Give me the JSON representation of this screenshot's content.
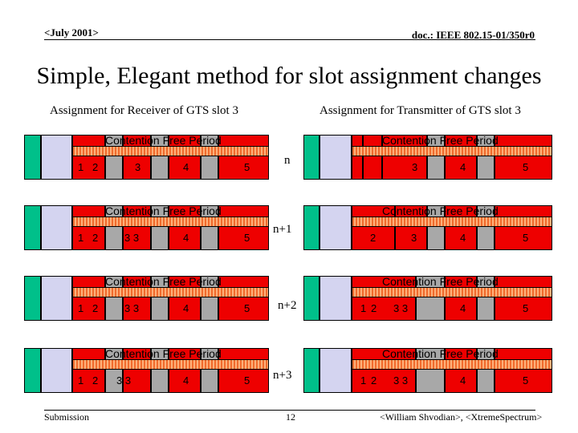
{
  "header": {
    "date": "<July 2001>",
    "doc": "doc.: IEEE 802.15-01/350r0"
  },
  "title": "Simple, Elegant method for slot assignment changes",
  "left_subtitle": "Assignment for Receiver of GTS slot 3",
  "right_subtitle": "Assignment for Transmitter of GTS slot 3",
  "cfp_label": "Contention Free Period",
  "steps": [
    "n",
    "n+1",
    "n+2",
    "n+3"
  ],
  "colors": {
    "beacon": "#00c08a",
    "cap": "#d4d4f0",
    "slot": "#ee0000",
    "idle": "#a8a8a8",
    "cfp": "#f06a2c"
  },
  "left_rows": [
    {
      "labels": [
        "1",
        "2",
        "3",
        "4",
        "5"
      ]
    },
    {
      "labels": [
        "1",
        "2",
        "3 3",
        "4",
        "5"
      ]
    },
    {
      "labels": [
        "1",
        "2",
        "3 3",
        "4",
        "5"
      ]
    },
    {
      "labels": [
        "1",
        "2",
        "3 3",
        "4",
        "5"
      ]
    }
  ],
  "right_rows": [
    {
      "labels": [
        "3",
        "4",
        "5"
      ]
    },
    {
      "labels": [
        "2",
        "3",
        "4",
        "5"
      ]
    },
    {
      "labels": [
        "1",
        "2",
        "3 3",
        "4",
        "5"
      ]
    },
    {
      "labels": [
        "1",
        "2",
        "3 3",
        "4",
        "5"
      ]
    }
  ],
  "footer": {
    "left": "Submission",
    "page": "12",
    "right": "<William Shvodian>, <XtremeSpectrum>"
  }
}
